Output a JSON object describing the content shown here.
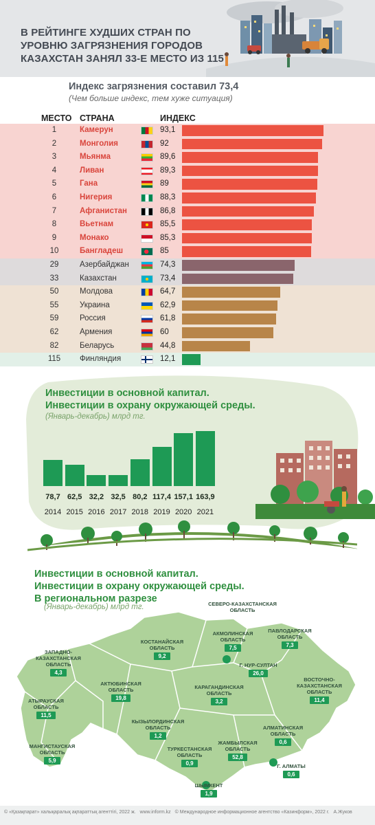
{
  "header": {
    "title": "В рейтинге худших стран по уровню загрязнения городов Казахстан занял 33-е место из 115"
  },
  "pollution": {
    "subtitle": "Индекс загрязнения составил 73,4",
    "note": "(Чем больше индекс, тем хуже ситуация)",
    "col_place": "МЕСТО",
    "col_country": "СТРАНА",
    "col_index": "ИНДЕКС"
  },
  "investment": {
    "title1": "Инвестиции в основной капитал.",
    "title2": "Инвестиции в охрану окружающей среды.",
    "note": "(Январь-декабрь) млрд тг."
  },
  "regional": {
    "title1": "Инвестиции в основной капитал.",
    "title2": "Инвестиции в охрану окружающей среды.",
    "title3": "В региональном разрезе",
    "note": "(Январь-декабрь) млрд тг.",
    "regions": [
      {
        "name": "Северо-Казахстанская область",
        "value": ""
      },
      {
        "name": "Акмолинская область",
        "value": "7,5"
      },
      {
        "name": "Павлодарская область",
        "value": "7,3"
      },
      {
        "name": "Костанайская область",
        "value": "9,2"
      },
      {
        "name": "г. Нур-Султан",
        "value": "26,0"
      },
      {
        "name": "Западно-Казахстанская область",
        "value": "4,3"
      },
      {
        "name": "Восточно-Казахстанская область",
        "value": "11,4"
      },
      {
        "name": "Актюбинская область",
        "value": "19,8"
      },
      {
        "name": "Карагандинская область",
        "value": "3,2"
      },
      {
        "name": "Атырауская область",
        "value": "11,5"
      },
      {
        "name": "Кызылординская область",
        "value": "1,2"
      },
      {
        "name": "Алматинская область",
        "value": "0,6"
      },
      {
        "name": "Мангистауская область",
        "value": "5,9"
      },
      {
        "name": "Жамбылская область",
        "value": "52,8"
      },
      {
        "name": "Туркестанская область",
        "value": "0,9"
      },
      {
        "name": "г. Алматы",
        "value": "0,6"
      },
      {
        "name": "Шымкент",
        "value": "1,9"
      }
    ]
  },
  "footer": {
    "left": "© «Қазақпарат» халықаралық ақпараттық агенттігі, 2022 ж.",
    "site": "www.inform.kz",
    "right": "© Международное информационное агентство «Казинформ», 2022 г.",
    "author": "А.Жуков"
  },
  "colors": {
    "top10": "#ec5342",
    "neighbors": "#8a656c",
    "post_soviet": "#b88549",
    "best": "#1e9a55"
  },
  "chart_data": [
    {
      "type": "bar",
      "orientation": "horizontal",
      "title": "Индекс загрязнения составил 73,4",
      "subtitle": "(Чем больше индекс, тем хуже ситуация)",
      "rows": [
        {
          "place": "1",
          "country": "Камерун",
          "value": 93.1,
          "label": "93,1",
          "group": "red",
          "flag": "cameroon-flag-icon"
        },
        {
          "place": "2",
          "country": "Монголия",
          "value": 92,
          "label": "92",
          "group": "red",
          "flag": "mongolia-flag-icon"
        },
        {
          "place": "3",
          "country": "Мьянма",
          "value": 89.6,
          "label": "89,6",
          "group": "red",
          "flag": "myanmar-flag-icon"
        },
        {
          "place": "4",
          "country": "Ливан",
          "value": 89.3,
          "label": "89,3",
          "group": "red",
          "flag": "lebanon-flag-icon"
        },
        {
          "place": "5",
          "country": "Гана",
          "value": 89,
          "label": "89",
          "group": "red",
          "flag": "ghana-flag-icon"
        },
        {
          "place": "6",
          "country": "Нигерия",
          "value": 88.3,
          "label": "88,3",
          "group": "red",
          "flag": "nigeria-flag-icon"
        },
        {
          "place": "7",
          "country": "Афганистан",
          "value": 86.8,
          "label": "86,8",
          "group": "red",
          "flag": "afghanistan-flag-icon"
        },
        {
          "place": "8",
          "country": "Вьетнам",
          "value": 85.5,
          "label": "85,5",
          "group": "red",
          "flag": "vietnam-flag-icon"
        },
        {
          "place": "9",
          "country": "Монако",
          "value": 85.3,
          "label": "85,3",
          "group": "red",
          "flag": "monaco-flag-icon"
        },
        {
          "place": "10",
          "country": "Бангладеш",
          "value": 85,
          "label": "85",
          "group": "red",
          "flag": "bangladesh-flag-icon"
        },
        {
          "place": "29",
          "country": "Азербайджан",
          "value": 74.3,
          "label": "74,3",
          "group": "grey",
          "flag": "azerbaijan-flag-icon"
        },
        {
          "place": "33",
          "country": "Казахстан",
          "value": 73.4,
          "label": "73,4",
          "group": "grey",
          "flag": "kazakhstan-flag-icon"
        },
        {
          "place": "50",
          "country": "Молдова",
          "value": 64.7,
          "label": "64,7",
          "group": "brown",
          "flag": "moldova-flag-icon"
        },
        {
          "place": "55",
          "country": "Украина",
          "value": 62.9,
          "label": "62,9",
          "group": "brown",
          "flag": "ukraine-flag-icon"
        },
        {
          "place": "59",
          "country": "Россия",
          "value": 61.8,
          "label": "61,8",
          "group": "brown",
          "flag": "russia-flag-icon"
        },
        {
          "place": "62",
          "country": "Армения",
          "value": 60,
          "label": "60",
          "group": "brown",
          "flag": "armenia-flag-icon"
        },
        {
          "place": "82",
          "country": "Беларусь",
          "value": 44.8,
          "label": "44,8",
          "group": "brown",
          "flag": "belarus-flag-icon"
        },
        {
          "place": "115",
          "country": "Финляндия",
          "value": 12.1,
          "label": "12,1",
          "group": "green",
          "flag": "finland-flag-icon"
        }
      ]
    },
    {
      "type": "bar",
      "orientation": "vertical",
      "title": "Инвестиции в основной капитал. Инвестиции в охрану окружающей среды.",
      "subtitle": "(Январь-декабрь) млрд тг.",
      "categories": [
        "2014",
        "2015",
        "2016",
        "2017",
        "2018",
        "2019",
        "2020",
        "2021"
      ],
      "values": [
        78.7,
        62.5,
        32.2,
        32.5,
        80.2,
        117.4,
        157.1,
        163.9
      ],
      "labels": [
        "78,7",
        "62,5",
        "32,2",
        "32,5",
        "80,2",
        "117,4",
        "157,1",
        "163,9"
      ]
    }
  ]
}
